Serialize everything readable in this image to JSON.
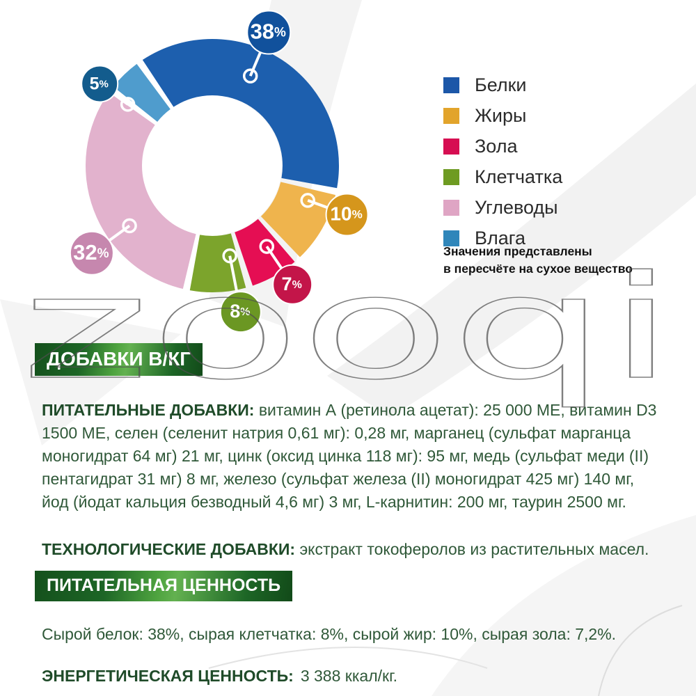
{
  "watermark_text": "zooqi",
  "chart_data": {
    "type": "pie",
    "subtype": "donut",
    "unit": "%",
    "labels": [
      "Белки",
      "Жиры",
      "Зола",
      "Клетчатка",
      "Углеводы",
      "Влага"
    ],
    "values": [
      38,
      10,
      7,
      8,
      32,
      5
    ],
    "segment_colors": [
      "#1d5fae",
      "#efb44d",
      "#e50e53",
      "#7ca42c",
      "#e2b2cd",
      "#4f9ccd"
    ],
    "bubble_colors": [
      "#11519c",
      "#d5961c",
      "#c31549",
      "#6b9723",
      "#c687ae",
      "#135c8d"
    ],
    "legend_colors": [
      "#1c57a8",
      "#e2a42b",
      "#d60e52",
      "#6e9b22",
      "#dfa5c4",
      "#2f86ba"
    ],
    "legend_position": "right",
    "note_line1": "Значения представлены",
    "note_line2": "в пересчёте на сухое вещество"
  },
  "sections": {
    "additives": {
      "header": "ДОБАВКИ В/КГ",
      "nutritional_lead": "ПИТАТЕЛЬНЫЕ ДОБАВКИ:",
      "nutritional_text": "витамин А (ретинола ацетат): 25 000 МЕ, витамин D3 1500 МЕ, селен (селенит натрия 0,61 мг): 0,28 мг, марганец (сульфат марганца моногидрат 64 мг) 21 мг, цинк (оксид цинка 118 мг): 95 мг, медь (сульфат меди (II) пентагидрат 31 мг) 8 мг, железо (сульфат железа (II) моногидрат 425 мг) 140 мг, йод (йодат кальция безводный 4,6 мг) 3 мг, L-карнитин: 200 мг, таурин 2500 мг.",
      "technological_lead": "ТЕХНОЛОГИЧЕСКИЕ ДОБАВКИ:",
      "technological_text": "экстракт токоферолов из растительных масел."
    },
    "nutrition": {
      "header": "ПИТАТЕЛЬНАЯ ЦЕННОСТЬ",
      "analysis_text": "Сырой белок: 38%, сырая клетчатка: 8%, сырой жир: 10%, сырая зола: 7,2%.",
      "energy_lead": "ЭНЕРГЕТИЧЕСКАЯ ЦЕННОСТЬ:",
      "energy_text": "3 388 ккал/кг."
    }
  }
}
